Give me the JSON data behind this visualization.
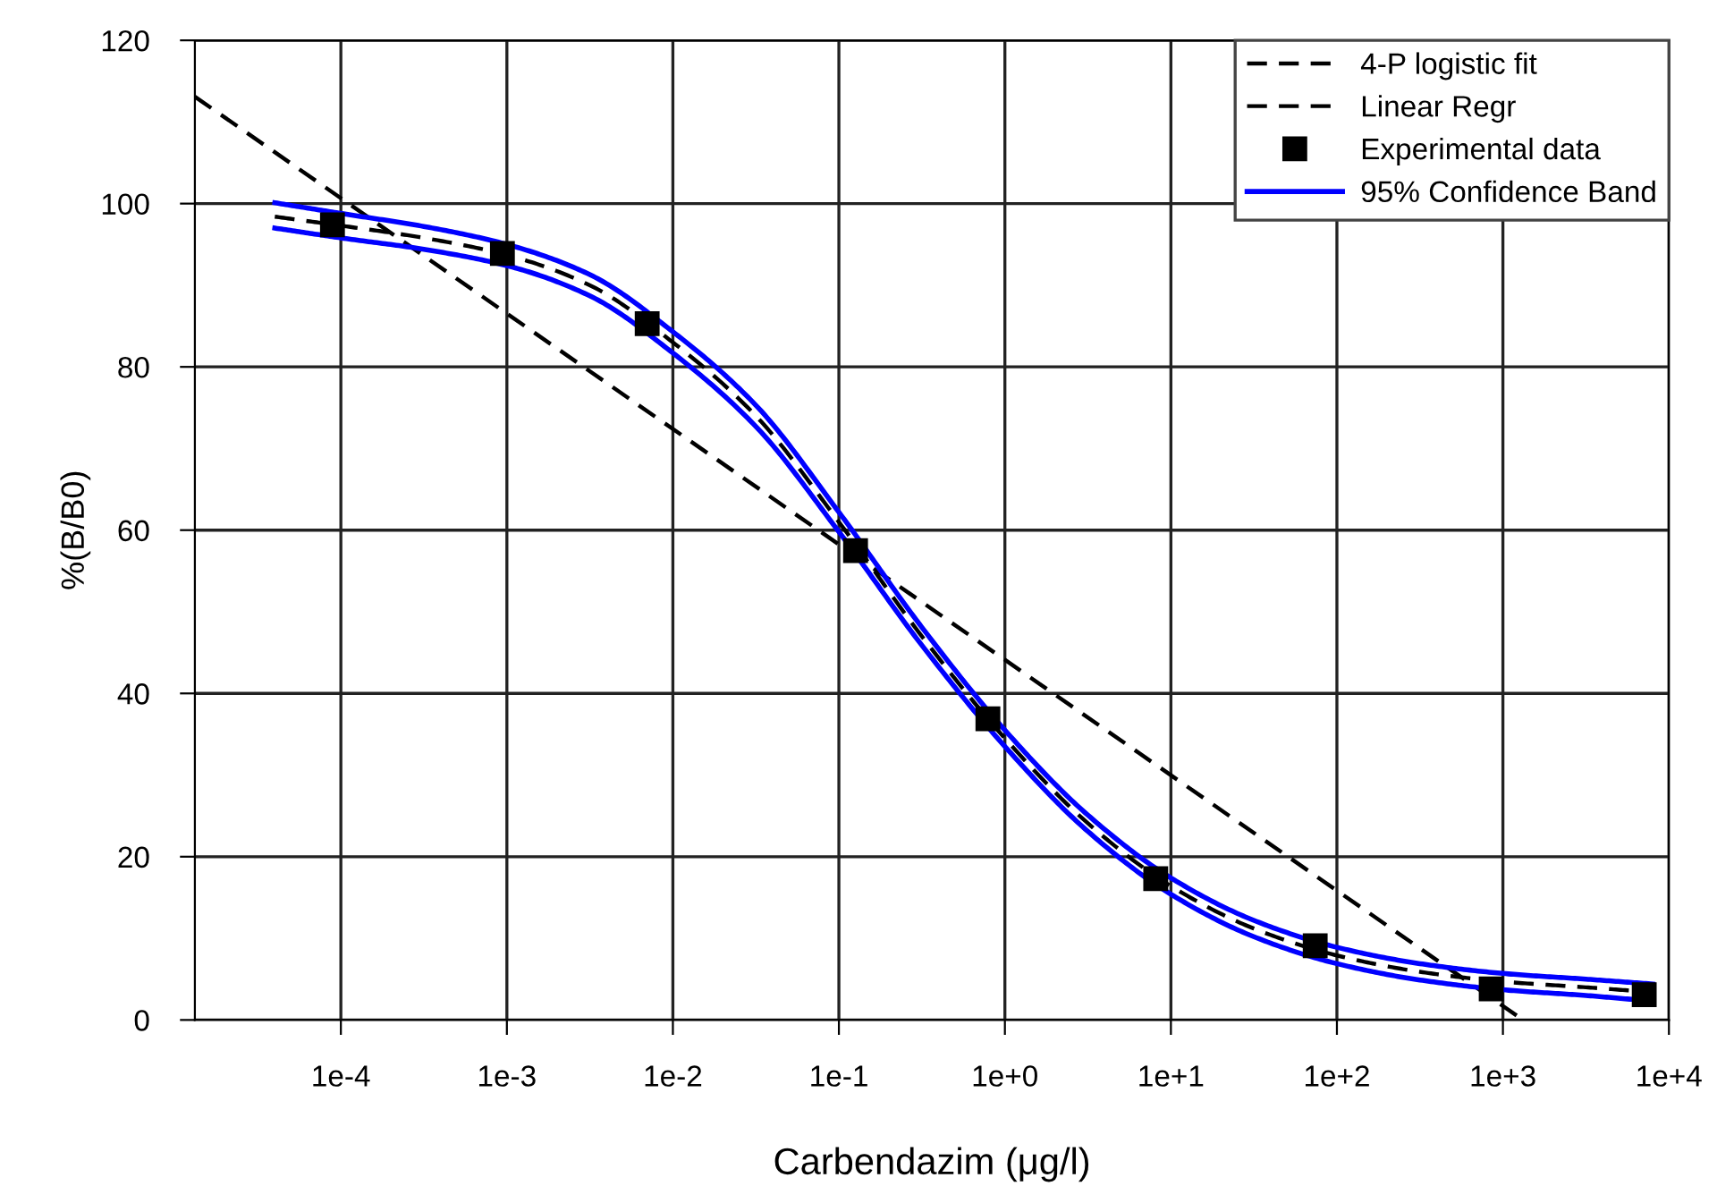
{
  "chart_data": {
    "type": "line",
    "xlabel": "Carbendazim (μg/l)",
    "ylabel": "%(B/B0)",
    "log": "x",
    "grid": true,
    "legend": "top right",
    "xlim": [
      1.32e-05,
      10000
    ],
    "xticks": [
      {
        "value": 0.0001,
        "label": "1e-4"
      },
      {
        "value": 0.001,
        "label": "1e-3"
      },
      {
        "value": 0.01,
        "label": "1e-2"
      },
      {
        "value": 0.1,
        "label": "1e-1"
      },
      {
        "value": 1,
        "label": "1e+0"
      },
      {
        "value": 10,
        "label": "1e+1"
      },
      {
        "value": 100,
        "label": "1e+2"
      },
      {
        "value": 1000,
        "label": "1e+3"
      },
      {
        "value": 10000,
        "label": "1e+4"
      }
    ],
    "ylim": [
      0,
      120
    ],
    "yticks": [
      0,
      20,
      40,
      60,
      80,
      100,
      120
    ],
    "series": [
      {
        "name": "4-P logistic fit",
        "color": "#000000",
        "line_style": "dashed",
        "marker": "none",
        "x": [
          4e-05,
          0.0001,
          0.000316,
          0.001,
          0.00316,
          0.01,
          0.0316,
          0.1,
          0.316,
          1,
          3.16,
          10,
          31.6,
          100,
          316,
          1000,
          3160,
          8000
        ],
        "values": [
          98.4,
          97.3,
          95.8,
          93.7,
          90.0,
          83.0,
          74.0,
          61.0,
          47.0,
          34.5,
          24.1,
          16.4,
          11.2,
          7.9,
          5.9,
          4.7,
          4.0,
          3.4
        ]
      },
      {
        "name": "Linear Regr",
        "color": "#000000",
        "line_style": "dashed",
        "marker": "none",
        "x": [
          1.32e-05,
          1320
        ],
        "values": [
          113.1,
          0
        ]
      },
      {
        "name": "Experimental data",
        "type": "scatter",
        "color": "#000000",
        "marker": "square",
        "x": [
          8.9e-05,
          0.00094,
          0.007,
          0.126,
          0.79,
          8.1,
          74,
          850,
          7100
        ],
        "values": [
          97.4,
          93.9,
          85.3,
          57.5,
          36.9,
          17.3,
          9.1,
          3.8,
          3.1
        ]
      },
      {
        "name": "95% Confidence Band",
        "color": "#0000ff",
        "line_style": "solid",
        "marker": "none",
        "x": [
          4e-05,
          0.0001,
          0.000316,
          0.001,
          0.00316,
          0.01,
          0.0316,
          0.1,
          0.316,
          1,
          3.16,
          10,
          31.6,
          100,
          316,
          1000,
          3160,
          8000
        ],
        "values": [
          100.1,
          98.8,
          97.2,
          95.0,
          91.3,
          84.3,
          75.3,
          62.2,
          48.1,
          35.5,
          25.1,
          17.4,
          12.2,
          8.9,
          6.9,
          5.7,
          5.0,
          4.4
        ]
      },
      {
        "color": "#0000ff",
        "line_style": "solid",
        "marker": "none",
        "x": [
          4e-05,
          0.0001,
          0.000316,
          0.001,
          0.00316,
          0.01,
          0.0316,
          0.1,
          0.316,
          1,
          3.16,
          10,
          31.6,
          100,
          316,
          1000,
          3160,
          8000
        ],
        "values": [
          97.0,
          95.8,
          94.4,
          92.4,
          88.7,
          81.7,
          72.7,
          59.8,
          45.9,
          33.5,
          23.1,
          15.4,
          10.2,
          6.9,
          4.9,
          3.7,
          3.0,
          2.3
        ]
      }
    ]
  }
}
